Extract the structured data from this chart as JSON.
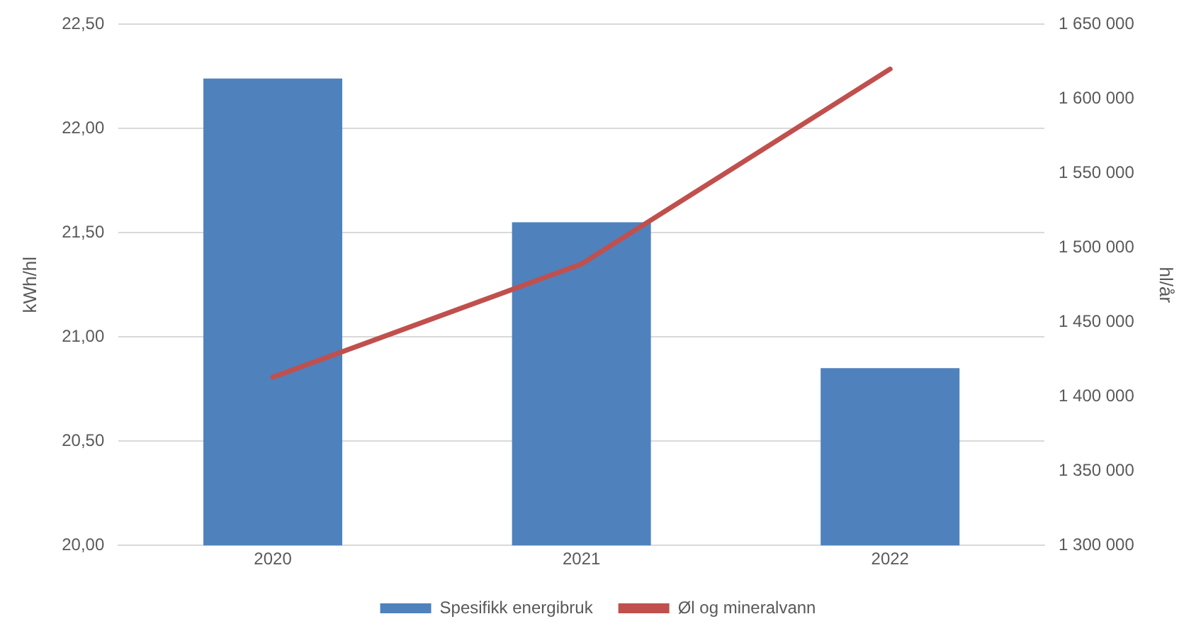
{
  "chart_data": {
    "type": "bar",
    "categories": [
      "2020",
      "2021",
      "2022"
    ],
    "series": [
      {
        "name": "Spesifikk energibruk",
        "color": "#4f81bd",
        "values": [
          22.24,
          21.55,
          20.85
        ]
      },
      {
        "name": "Øl og mineralvann",
        "type": "line",
        "axis": "y2",
        "color": "#c0504d",
        "values": [
          1413000,
          1489000,
          1620000
        ]
      }
    ],
    "ylabel": "kWh/hl",
    "y2label": "hl/år",
    "ylim": [
      20,
      22.5
    ],
    "yticks": [
      {
        "value": 20,
        "label": "20,00"
      },
      {
        "value": 20.5,
        "label": "20,50"
      },
      {
        "value": 21,
        "label": "21,00"
      },
      {
        "value": 21.5,
        "label": "21,50"
      },
      {
        "value": 22,
        "label": "22,00"
      },
      {
        "value": 22.5,
        "label": "22,50"
      }
    ],
    "y2lim": [
      1300000,
      1650000
    ],
    "y2ticks": [
      {
        "value": 1300000,
        "label": "1 300 000"
      },
      {
        "value": 1350000,
        "label": "1 350 000"
      },
      {
        "value": 1400000,
        "label": "1 400 000"
      },
      {
        "value": 1450000,
        "label": "1 450 000"
      },
      {
        "value": 1500000,
        "label": "1 500 000"
      },
      {
        "value": 1550000,
        "label": "1 550 000"
      },
      {
        "value": 1600000,
        "label": "1 600 000"
      },
      {
        "value": 1650000,
        "label": "1 650 000"
      }
    ],
    "grid": "y",
    "legend": "bottom",
    "marker": "none"
  }
}
